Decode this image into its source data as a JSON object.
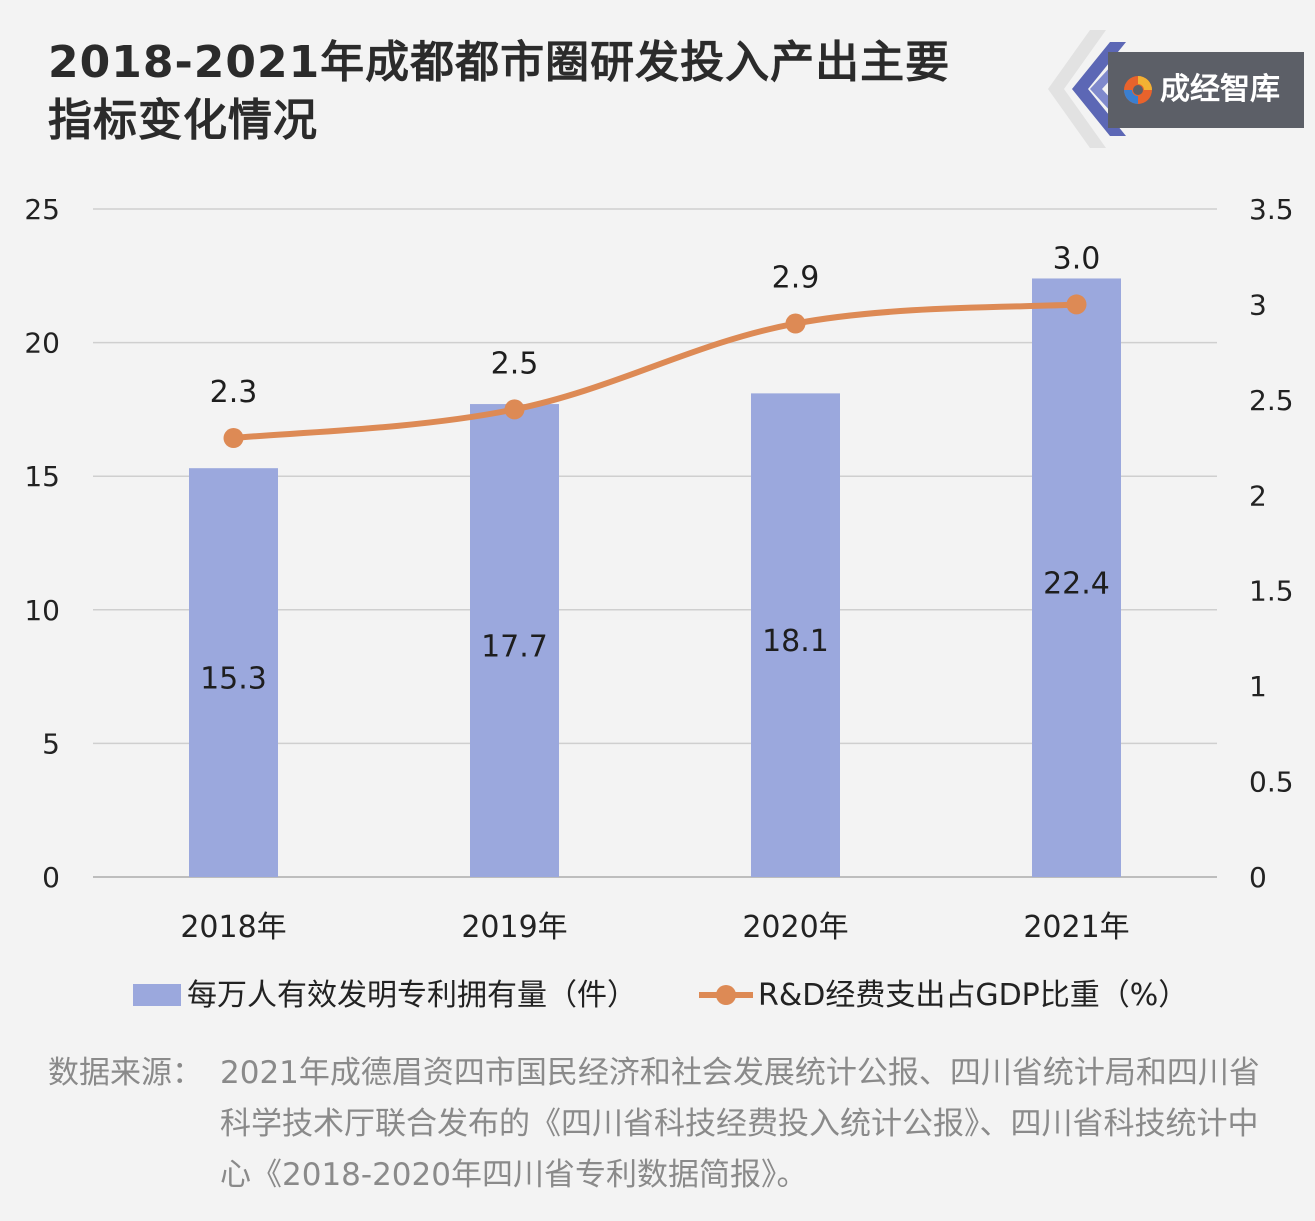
{
  "title": {
    "line1": "2018-2021年成都都市圈研发投入产出主要",
    "line2": "指标变化情况"
  },
  "brand": {
    "name": "成经智库",
    "icon": "brand-swirl-icon"
  },
  "colors": {
    "bar": "#9ba8dd",
    "line": "#dd8a55",
    "grid": "#cfcfcf",
    "background": "#f3f3f3"
  },
  "chart_data": {
    "type": "bar+line",
    "categories": [
      "2018年",
      "2019年",
      "2020年",
      "2021年"
    ],
    "series": [
      {
        "name": "每万人有效发明专利拥有量（件）",
        "type": "bar",
        "axis": "left",
        "values": [
          15.3,
          17.7,
          18.1,
          22.4
        ],
        "labels": [
          "15.3",
          "17.7",
          "18.1",
          "22.4"
        ]
      },
      {
        "name": "R&D经费支出占GDP比重（%）",
        "type": "line",
        "axis": "right",
        "values": [
          2.3,
          2.45,
          2.9,
          3.0
        ],
        "labels": [
          "2.3",
          "2.5",
          "2.9",
          "3.0"
        ]
      }
    ],
    "y_left": {
      "min": 0,
      "max": 25,
      "ticks": [
        "0",
        "5",
        "10",
        "15",
        "20",
        "25"
      ]
    },
    "y_right": {
      "min": 0,
      "max": 3.5,
      "ticks": [
        "0",
        "0.5",
        "1",
        "1.5",
        "2",
        "2.5",
        "3",
        "3.5"
      ]
    },
    "grid": true,
    "legend_position": "bottom"
  },
  "source": {
    "prefix": "数据来源：",
    "text": "2021年成德眉资四市国民经济和社会发展统计公报、四川省统计局和四川省科学技术厅联合发布的《四川省科技经费投入统计公报》、四川省科技统计中心《2018-2020年四川省专利数据简报》。"
  }
}
